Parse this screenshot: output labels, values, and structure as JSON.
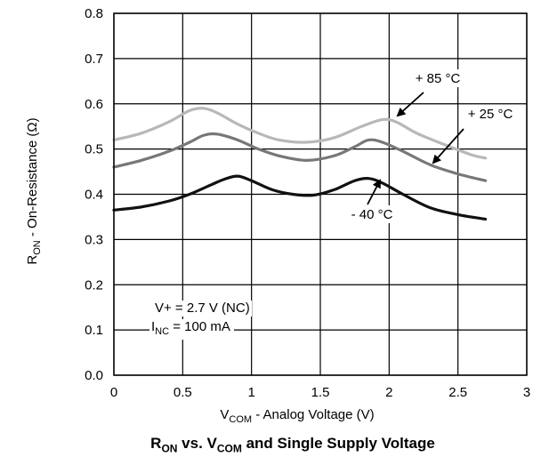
{
  "chart_data": {
    "type": "line",
    "x_axis": {
      "label_main": "V",
      "label_sub": "COM",
      "label_rest": " - Analog Voltage (V)",
      "range": [
        0,
        3
      ],
      "ticks": [
        "0",
        "0.5",
        "1",
        "1.5",
        "2",
        "2.5",
        "3"
      ]
    },
    "y_axis": {
      "label_main": "R",
      "label_sub": "ON",
      "label_rest": " - On-Resistance (Ω)",
      "range": [
        0.0,
        0.8
      ],
      "ticks": [
        "0.0",
        "0.1",
        "0.2",
        "0.3",
        "0.4",
        "0.5",
        "0.6",
        "0.7",
        "0.8"
      ]
    },
    "grid": true,
    "caption": {
      "p1": "R",
      "s1": "ON",
      "p2": " vs. V",
      "s2": "COM",
      "p3": " and Single Supply Voltage"
    },
    "conditions": {
      "line1": "V+ = 2.7 V (NC)",
      "line2_main": "I",
      "line2_sub": "NC",
      "line2_rest": " = 100 mA"
    },
    "series": [
      {
        "name": "+ 85 °C",
        "color": "#b8b8b8",
        "x": [
          0,
          0.2,
          0.4,
          0.55,
          0.65,
          0.75,
          0.9,
          1.05,
          1.2,
          1.4,
          1.6,
          1.8,
          1.95,
          2.05,
          2.2,
          2.4,
          2.6,
          2.7
        ],
        "y": [
          0.52,
          0.535,
          0.56,
          0.585,
          0.59,
          0.58,
          0.555,
          0.535,
          0.52,
          0.515,
          0.525,
          0.55,
          0.565,
          0.56,
          0.535,
          0.51,
          0.487,
          0.48
        ]
      },
      {
        "name": "+ 25 °C",
        "color": "#777777",
        "x": [
          0,
          0.2,
          0.4,
          0.55,
          0.65,
          0.75,
          0.9,
          1.05,
          1.2,
          1.4,
          1.6,
          1.75,
          1.85,
          1.95,
          2.1,
          2.3,
          2.5,
          2.7
        ],
        "y": [
          0.46,
          0.475,
          0.495,
          0.515,
          0.53,
          0.533,
          0.52,
          0.5,
          0.485,
          0.475,
          0.485,
          0.505,
          0.52,
          0.515,
          0.495,
          0.465,
          0.445,
          0.43
        ]
      },
      {
        "name": "- 40 °C",
        "color": "#111111",
        "x": [
          0,
          0.2,
          0.4,
          0.55,
          0.7,
          0.8,
          0.9,
          1.0,
          1.15,
          1.3,
          1.45,
          1.6,
          1.75,
          1.85,
          1.95,
          2.1,
          2.3,
          2.5,
          2.7
        ],
        "y": [
          0.365,
          0.372,
          0.385,
          0.4,
          0.42,
          0.433,
          0.44,
          0.43,
          0.41,
          0.4,
          0.398,
          0.41,
          0.43,
          0.435,
          0.425,
          0.4,
          0.37,
          0.355,
          0.345
        ]
      }
    ],
    "annotations": [
      {
        "text": "+ 85 °C",
        "series": 0
      },
      {
        "text": "+ 25 °C",
        "series": 1
      },
      {
        "text": "- 40 °C",
        "series": 2
      }
    ]
  }
}
